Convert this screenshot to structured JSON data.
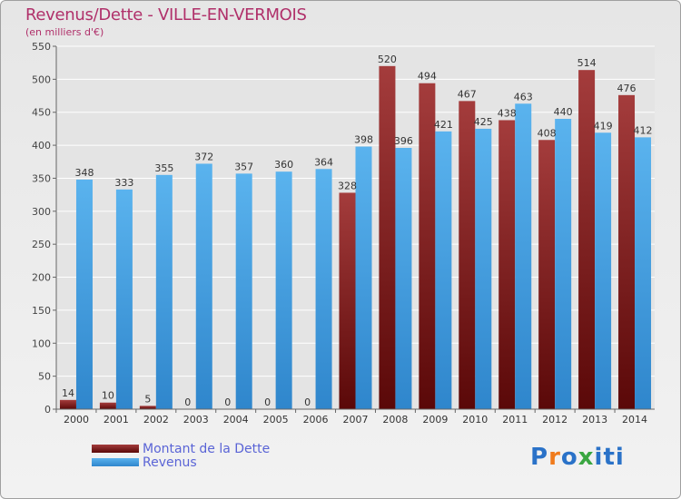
{
  "title": "Revenus/Dette - VILLE-EN-VERMOIS",
  "subtitle": "(en milliers d'€)",
  "logo": {
    "text": "Proxiti",
    "letters": [
      "P",
      "r",
      "o",
      "x",
      "i",
      "t",
      "i"
    ],
    "colors": [
      "#2a72c8",
      "#f07b1c",
      "#2a72c8",
      "#3aa641",
      "#2a72c8",
      "#2a72c8",
      "#2a72c8"
    ]
  },
  "legend": [
    {
      "label": "Montant de la Dette",
      "color": "#7a1a1a"
    },
    {
      "label": "Revenus",
      "color": "#4aa6e8"
    }
  ],
  "chart_data": {
    "type": "bar",
    "title": "Revenus/Dette - VILLE-EN-VERMOIS",
    "subtitle": "(en milliers d'€)",
    "categories": [
      "2000",
      "2001",
      "2002",
      "2003",
      "2004",
      "2005",
      "2006",
      "2007",
      "2008",
      "2009",
      "2010",
      "2011",
      "2012",
      "2013",
      "2014"
    ],
    "series": [
      {
        "name": "Montant de la Dette",
        "color": "#7a1a1a",
        "values": [
          14,
          10,
          5,
          0,
          0,
          0,
          0,
          328,
          520,
          494,
          467,
          438,
          408,
          514,
          476
        ]
      },
      {
        "name": "Revenus",
        "color": "#4aa6e8",
        "values": [
          348,
          333,
          355,
          372,
          357,
          360,
          364,
          398,
          396,
          421,
          425,
          463,
          440,
          419,
          412
        ]
      }
    ],
    "ylim": [
      0,
      550
    ],
    "yticks": [
      0,
      50,
      100,
      150,
      200,
      250,
      300,
      350,
      400,
      450,
      500,
      550
    ],
    "grid": true,
    "legend_position": "bottom-left"
  }
}
